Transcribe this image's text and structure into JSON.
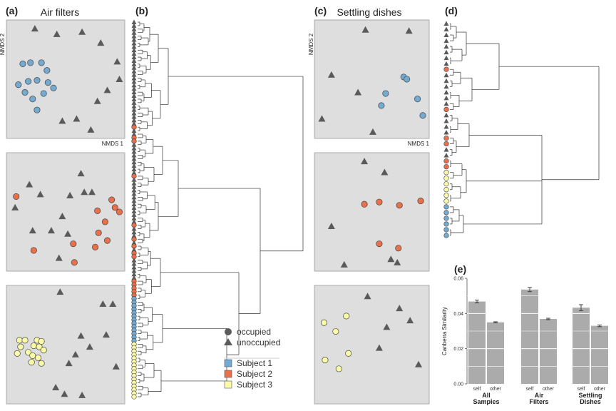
{
  "labels": {
    "a": "(a)",
    "b": "(b)",
    "c": "(c)",
    "d": "(d)",
    "e": "(e)"
  },
  "titles": {
    "air": "Air filters",
    "settle": "Settling dishes"
  },
  "axes": {
    "nmds1": "NMDS 1",
    "nmds2": "NMDS 2"
  },
  "colors": {
    "subject1": "#74aad0",
    "subject2": "#e8704a",
    "subject3": "#fafaa8",
    "unoccupied": "#5a5a5a",
    "panel_bg": "#dedede",
    "bar": "#ababab"
  },
  "legend": {
    "shape": [
      {
        "name": "occupied",
        "marker": "circle"
      },
      {
        "name": "unoccupied",
        "marker": "triangle"
      }
    ],
    "subjects": [
      {
        "name": "Subject 1",
        "color": "#74aad0"
      },
      {
        "name": "Subject 2",
        "color": "#e8704a"
      },
      {
        "name": "Subject 3",
        "color": "#fafaa8"
      }
    ]
  },
  "chart_data": [
    {
      "type": "scatter",
      "panel": "a",
      "row": 1,
      "subject": 1,
      "xlabel": "NMDS 1",
      "ylabel": "NMDS 2",
      "occupied": [
        [
          0.11,
          0.36
        ],
        [
          0.18,
          0.35
        ],
        [
          0.28,
          0.35
        ],
        [
          0.33,
          0.42
        ],
        [
          0.07,
          0.55
        ],
        [
          0.16,
          0.52
        ],
        [
          0.24,
          0.51
        ],
        [
          0.34,
          0.53
        ],
        [
          0.13,
          0.62
        ],
        [
          0.3,
          0.63
        ],
        [
          0.39,
          0.58
        ],
        [
          0.2,
          0.68
        ],
        [
          0.24,
          0.78
        ]
      ],
      "unoccupied": [
        [
          0.22,
          0.04
        ],
        [
          0.42,
          0.09
        ],
        [
          0.65,
          0.07
        ],
        [
          0.82,
          0.17
        ],
        [
          0.97,
          0.34
        ],
        [
          0.99,
          0.5
        ],
        [
          0.88,
          0.6
        ],
        [
          0.79,
          0.7
        ],
        [
          0.47,
          0.88
        ],
        [
          0.6,
          0.86
        ],
        [
          0.73,
          0.96
        ]
      ]
    },
    {
      "type": "scatter",
      "panel": "a",
      "row": 2,
      "subject": 2,
      "occupied": [
        [
          0.05,
          0.36
        ],
        [
          0.92,
          0.39
        ],
        [
          0.95,
          0.46
        ],
        [
          0.99,
          0.5
        ],
        [
          0.79,
          0.49
        ],
        [
          0.86,
          0.59
        ],
        [
          0.8,
          0.69
        ],
        [
          0.88,
          0.76
        ],
        [
          0.57,
          0.79
        ],
        [
          0.77,
          0.82
        ],
        [
          0.21,
          0.85
        ],
        [
          0.58,
          0.96
        ]
      ],
      "unoccupied": [
        [
          0.17,
          0.25
        ],
        [
          0.64,
          0.15
        ],
        [
          0.27,
          0.34
        ],
        [
          0.54,
          0.35
        ],
        [
          0.67,
          0.32
        ],
        [
          0.74,
          0.32
        ],
        [
          0.04,
          0.46
        ],
        [
          0.47,
          0.54
        ],
        [
          0.2,
          0.67
        ],
        [
          0.37,
          0.67
        ],
        [
          0.52,
          0.7
        ],
        [
          0.44,
          0.92
        ]
      ]
    },
    {
      "type": "scatter",
      "panel": "a",
      "row": 3,
      "subject": 3,
      "occupied": [
        [
          0.08,
          0.46
        ],
        [
          0.13,
          0.46
        ],
        [
          0.24,
          0.46
        ],
        [
          0.28,
          0.47
        ],
        [
          0.09,
          0.52
        ],
        [
          0.21,
          0.51
        ],
        [
          0.26,
          0.52
        ],
        [
          0.3,
          0.55
        ],
        [
          0.16,
          0.57
        ],
        [
          0.06,
          0.58
        ],
        [
          0.2,
          0.6
        ],
        [
          0.25,
          0.62
        ],
        [
          0.19,
          0.66
        ],
        [
          0.28,
          0.67
        ]
      ],
      "unoccupied": [
        [
          0.45,
          0.02
        ],
        [
          0.84,
          0.13
        ],
        [
          0.93,
          0.13
        ],
        [
          0.64,
          0.42
        ],
        [
          0.87,
          0.41
        ],
        [
          0.72,
          0.52
        ],
        [
          0.59,
          0.59
        ],
        [
          0.53,
          0.67
        ],
        [
          0.96,
          0.7
        ],
        [
          0.41,
          0.89
        ],
        [
          0.49,
          0.95
        ],
        [
          0.65,
          0.96
        ]
      ]
    },
    {
      "type": "scatter",
      "panel": "c",
      "row": 1,
      "subject": 1,
      "xlabel": "NMDS 1",
      "ylabel": "NMDS 2",
      "occupied": [
        [
          0.8,
          0.48
        ],
        [
          0.83,
          0.5
        ],
        [
          0.63,
          0.63
        ],
        [
          0.93,
          0.68
        ],
        [
          0.59,
          0.74
        ],
        [
          0.98,
          0.83
        ]
      ],
      "unoccupied": [
        [
          0.44,
          0.05
        ],
        [
          0.85,
          0.06
        ],
        [
          0.12,
          0.46
        ],
        [
          0.37,
          0.62
        ],
        [
          0.03,
          0.86
        ],
        [
          0.51,
          0.98
        ]
      ]
    },
    {
      "type": "scatter",
      "panel": "c",
      "row": 2,
      "subject": 2,
      "occupied": [
        [
          0.57,
          0.41
        ],
        [
          0.76,
          0.44
        ],
        [
          0.96,
          0.4
        ],
        [
          0.43,
          0.43
        ],
        [
          0.57,
          0.79
        ],
        [
          0.75,
          0.83
        ]
      ],
      "unoccupied": [
        [
          0.43,
          0.04
        ],
        [
          0.62,
          0.14
        ],
        [
          0.12,
          0.63
        ],
        [
          0.24,
          0.98
        ],
        [
          0.68,
          0.93
        ],
        [
          0.74,
          0.96
        ]
      ]
    },
    {
      "type": "scatter",
      "panel": "c",
      "row": 3,
      "subject": 3,
      "occupied": [
        [
          0.26,
          0.24
        ],
        [
          0.05,
          0.3
        ],
        [
          0.16,
          0.38
        ],
        [
          0.28,
          0.58
        ],
        [
          0.06,
          0.64
        ],
        [
          0.19,
          0.72
        ]
      ],
      "unoccupied": [
        [
          0.46,
          0.06
        ],
        [
          0.76,
          0.17
        ],
        [
          0.86,
          0.28
        ],
        [
          0.64,
          0.34
        ],
        [
          0.57,
          0.53
        ],
        [
          0.94,
          0.68
        ]
      ]
    },
    {
      "type": "bar",
      "panel": "e",
      "ylabel": "Canberra Similarity",
      "ylim": [
        0,
        0.06
      ],
      "yticks": [
        "0.00",
        "0.02",
        "0.04",
        "0.06"
      ],
      "groups": [
        "All Samples",
        "Air Filters",
        "Settling Dishes"
      ],
      "group_lines": [
        [
          "All",
          "Samples"
        ],
        [
          "Air",
          "Filters"
        ],
        [
          "Settling",
          "Dishes"
        ]
      ],
      "bar_labels": [
        "self",
        "other"
      ],
      "values": [
        [
          0.0468,
          0.035
        ],
        [
          0.0536,
          0.0369
        ],
        [
          0.0433,
          0.033
        ]
      ],
      "errors": [
        [
          0.0008,
          0.0003
        ],
        [
          0.0012,
          0.0004
        ],
        [
          0.0017,
          0.0005
        ]
      ]
    },
    {
      "type": "dendrogram",
      "panel": "b",
      "leaves": [
        "u",
        "u",
        "u",
        "u",
        "u",
        "u",
        "u",
        "u",
        "u",
        "u",
        "u",
        "u",
        "u",
        "u",
        "u",
        "u",
        "u",
        "u",
        "u",
        "u",
        "u",
        "u",
        "u",
        "u",
        "u",
        "u",
        "u",
        "u",
        "u",
        "u",
        "2",
        "u",
        "u",
        "2",
        "2",
        "u",
        "u",
        "u",
        "u",
        "u",
        "u",
        "u",
        "u",
        "u",
        "2",
        "u",
        "u",
        "u",
        "u",
        "u",
        "u",
        "u",
        "u",
        "u",
        "u",
        "u",
        "u",
        "u",
        "2",
        "u",
        "u",
        "u",
        "2",
        "u",
        "2",
        "u",
        "2",
        "2",
        "u",
        "u",
        "u",
        "u",
        "u",
        "u",
        "2",
        "2",
        "2",
        "2",
        "2",
        "1",
        "1",
        "1",
        "1",
        "1",
        "1",
        "1",
        "1",
        "1",
        "1",
        "1",
        "1",
        "1",
        "3",
        "3",
        "3",
        "3",
        "3",
        "3",
        "3",
        "3",
        "3",
        "3",
        "3",
        "3",
        "3",
        "3",
        "3",
        "3"
      ]
    },
    {
      "type": "dendrogram",
      "panel": "d",
      "leaves": [
        "u",
        "u",
        "u",
        "u",
        "u",
        "u",
        "u",
        "u",
        "2",
        "u",
        "u",
        "u",
        "u",
        "u",
        "u",
        "2",
        "u",
        "u",
        "u",
        "u",
        "2",
        "2",
        "u",
        "u",
        "2",
        "2",
        "3",
        "3",
        "3",
        "3",
        "3",
        "3",
        "1",
        "1",
        "1",
        "1",
        "1",
        "1"
      ]
    }
  ]
}
